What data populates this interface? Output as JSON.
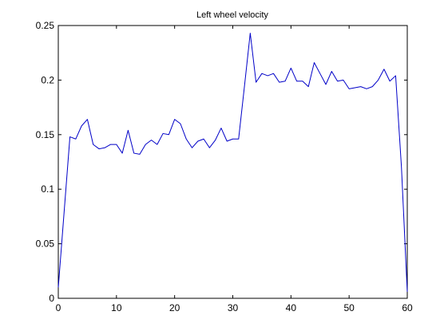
{
  "chart_data": {
    "type": "line",
    "title": "Left wheel velocity",
    "xlabel": "",
    "ylabel": "",
    "xlim": [
      0,
      60
    ],
    "ylim": [
      0,
      0.25
    ],
    "x_ticks": [
      0,
      10,
      20,
      30,
      40,
      50,
      60
    ],
    "y_ticks": [
      0,
      0.05,
      0.1,
      0.15,
      0.2,
      0.25
    ],
    "x_tick_labels": [
      "0",
      "10",
      "20",
      "30",
      "40",
      "50",
      "60"
    ],
    "y_tick_labels": [
      "0",
      "0.05",
      "0.1",
      "0.15",
      "0.2",
      "0.25"
    ],
    "grid": false,
    "legend": "none",
    "series": [
      {
        "color": "#0000c8",
        "x": [
          0,
          1,
          2,
          3,
          4,
          5,
          6,
          7,
          8,
          9,
          10,
          11,
          12,
          13,
          14,
          15,
          16,
          17,
          18,
          19,
          20,
          21,
          22,
          23,
          24,
          25,
          26,
          27,
          28,
          29,
          30,
          31,
          32,
          33,
          34,
          35,
          36,
          37,
          38,
          39,
          40,
          41,
          42,
          43,
          44,
          45,
          46,
          47,
          48,
          49,
          50,
          51,
          52,
          53,
          54,
          55,
          56,
          57,
          58,
          59,
          60
        ],
        "y": [
          0.01,
          0.079,
          0.148,
          0.146,
          0.158,
          0.164,
          0.141,
          0.137,
          0.138,
          0.141,
          0.141,
          0.133,
          0.154,
          0.133,
          0.132,
          0.141,
          0.145,
          0.141,
          0.151,
          0.15,
          0.164,
          0.16,
          0.146,
          0.138,
          0.144,
          0.146,
          0.138,
          0.145,
          0.156,
          0.144,
          0.146,
          0.146,
          0.194,
          0.243,
          0.198,
          0.206,
          0.204,
          0.206,
          0.198,
          0.199,
          0.211,
          0.199,
          0.199,
          0.194,
          0.216,
          0.206,
          0.196,
          0.208,
          0.199,
          0.2,
          0.192,
          0.193,
          0.194,
          0.192,
          0.194,
          0.2,
          0.21,
          0.199,
          0.204,
          0.12,
          0.006
        ]
      }
    ]
  }
}
